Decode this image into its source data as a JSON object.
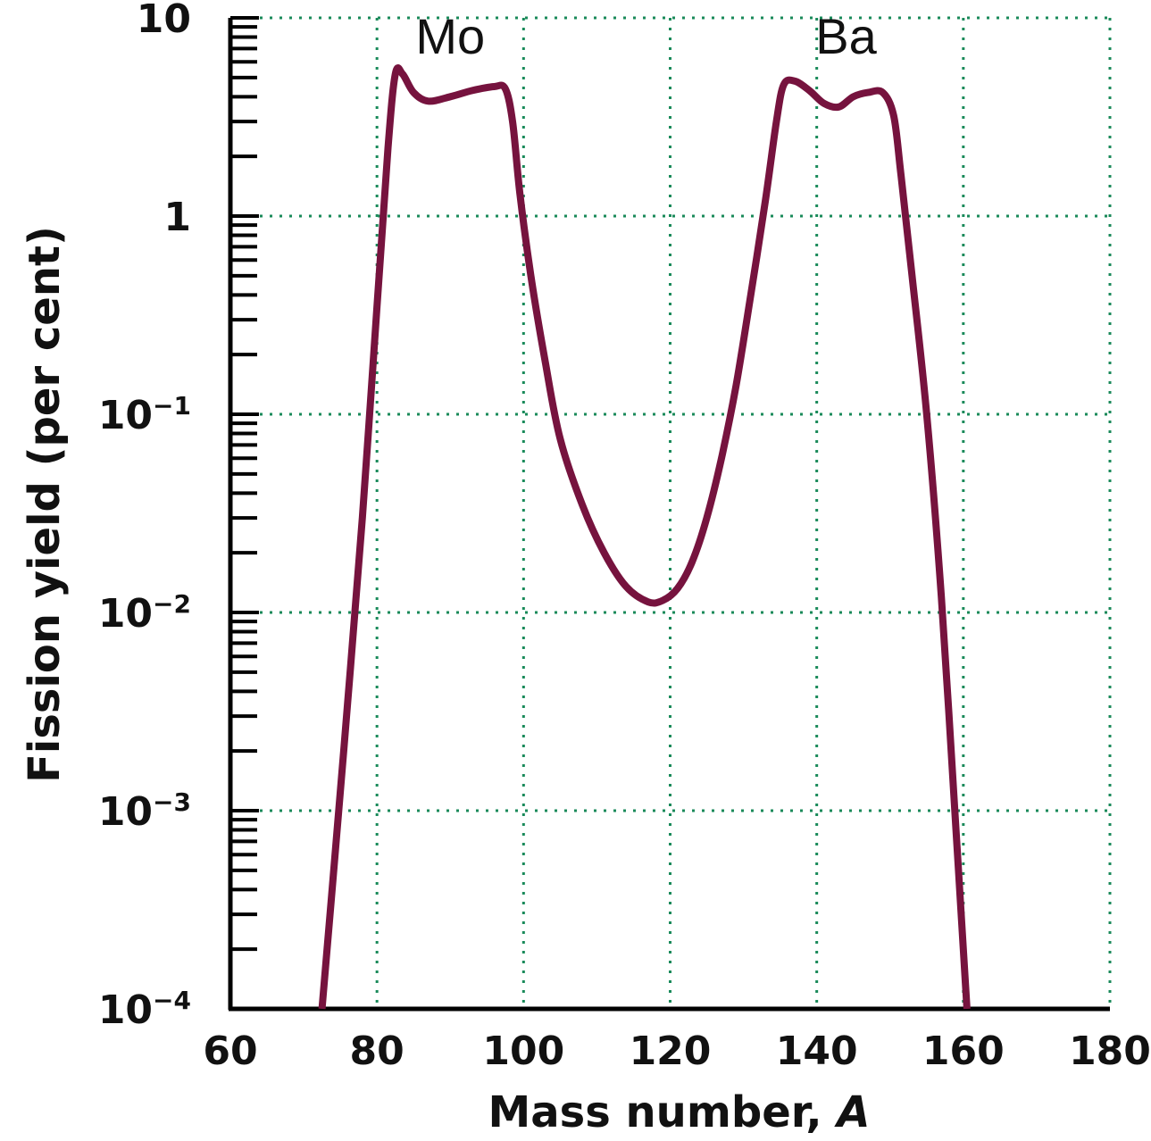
{
  "chart_data": {
    "type": "line",
    "xlabel": "Mass number, A",
    "ylabel": "Fission yield (per cent)",
    "x_axis": {
      "range": [
        60,
        180
      ],
      "ticks": [
        60,
        80,
        100,
        120,
        140,
        160,
        180
      ],
      "tick_labels": [
        "60",
        "80",
        "100",
        "120",
        "140",
        "160",
        "180"
      ]
    },
    "y_axis": {
      "scale": "log",
      "range": [
        0.0001,
        10
      ],
      "decades": [
        {
          "value": 10,
          "base": "10",
          "exp": ""
        },
        {
          "value": 1,
          "base": "1",
          "exp": ""
        },
        {
          "value": 0.1,
          "base": "10",
          "exp": "−1"
        },
        {
          "value": 0.01,
          "base": "10",
          "exp": "−2"
        },
        {
          "value": 0.001,
          "base": "10",
          "exp": "−3"
        },
        {
          "value": 0.0001,
          "base": "10",
          "exp": "−4"
        }
      ]
    },
    "grid": true,
    "annotations": [
      {
        "text": "Mo",
        "x": 90,
        "y": 8
      },
      {
        "text": "Ba",
        "x": 144,
        "y": 8
      }
    ],
    "series": [
      {
        "color": "#76133e",
        "points": [
          [
            72.5,
            0.0001
          ],
          [
            74,
            0.00045
          ],
          [
            76,
            0.0035
          ],
          [
            78,
            0.03
          ],
          [
            80,
            0.35
          ],
          [
            81.5,
            2.2
          ],
          [
            82.5,
            5.2
          ],
          [
            83.5,
            5.2
          ],
          [
            85,
            4.2
          ],
          [
            87,
            3.8
          ],
          [
            90,
            4.0
          ],
          [
            93,
            4.3
          ],
          [
            96,
            4.5
          ],
          [
            97.5,
            4.4
          ],
          [
            98.5,
            3.0
          ],
          [
            99.5,
            1.3
          ],
          [
            101,
            0.5
          ],
          [
            103,
            0.18
          ],
          [
            105,
            0.075
          ],
          [
            108,
            0.035
          ],
          [
            111,
            0.02
          ],
          [
            114,
            0.0135
          ],
          [
            117,
            0.0113
          ],
          [
            119,
            0.0115
          ],
          [
            121,
            0.0132
          ],
          [
            123,
            0.018
          ],
          [
            125,
            0.03
          ],
          [
            127,
            0.06
          ],
          [
            129,
            0.14
          ],
          [
            131,
            0.4
          ],
          [
            133,
            1.2
          ],
          [
            134.5,
            3.0
          ],
          [
            135.5,
            4.6
          ],
          [
            137,
            4.8
          ],
          [
            139,
            4.3
          ],
          [
            141,
            3.7
          ],
          [
            143,
            3.55
          ],
          [
            145,
            4.0
          ],
          [
            147,
            4.2
          ],
          [
            149,
            4.2
          ],
          [
            150.5,
            3.2
          ],
          [
            151.5,
            1.6
          ],
          [
            153,
            0.5
          ],
          [
            155,
            0.1
          ],
          [
            157,
            0.012
          ],
          [
            159,
            0.0008
          ],
          [
            160.5,
            0.0001
          ]
        ]
      }
    ],
    "colors": {
      "grid": "#1a8a5a",
      "axis": "#000000",
      "curve": "#76133e"
    }
  }
}
